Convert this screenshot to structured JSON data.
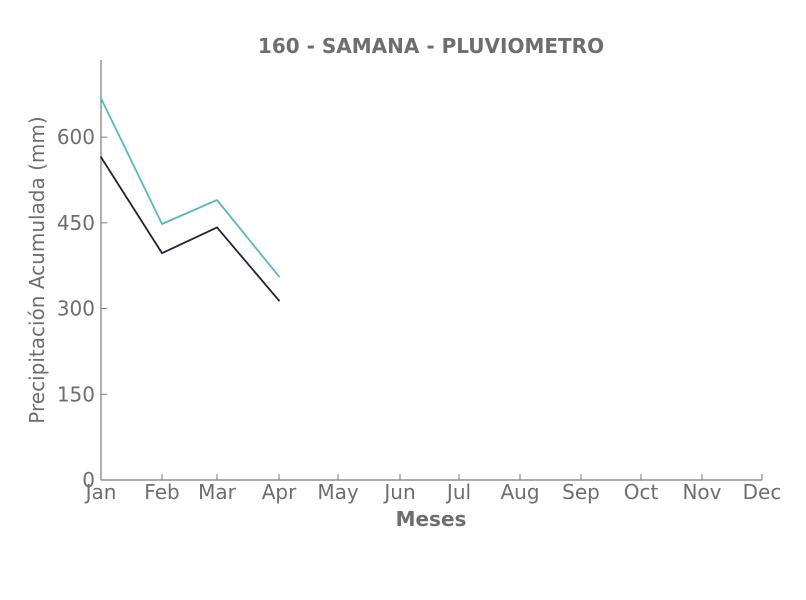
{
  "chart_data": {
    "type": "line",
    "title": "160 - SAMANA - PLUVIOMETRO",
    "xlabel": "Meses",
    "ylabel": "Precipitación Acumulada (mm)",
    "categories": [
      "Jan",
      "Feb",
      "Mar",
      "Apr",
      "May",
      "Jun",
      "Jul",
      "Aug",
      "Sep",
      "Oct",
      "Nov",
      "Dec"
    ],
    "yticks": [
      0,
      150,
      300,
      450,
      600
    ],
    "ylim": [
      0,
      735
    ],
    "grid": false,
    "legend": "none",
    "series": [
      {
        "color": "#54b9c0",
        "values": [
          668,
          448,
          490,
          356,
          null,
          null,
          null,
          null,
          null,
          null,
          null,
          null
        ]
      },
      {
        "color": "#23223e",
        "values": [
          565,
          397,
          442,
          314,
          null,
          null,
          null,
          null,
          null,
          null,
          null,
          null
        ]
      }
    ]
  }
}
